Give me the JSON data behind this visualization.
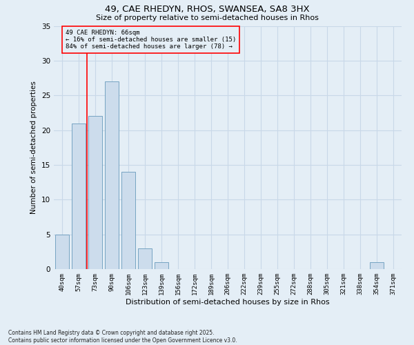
{
  "title1": "49, CAE RHEDYN, RHOS, SWANSEA, SA8 3HX",
  "title2": "Size of property relative to semi-detached houses in Rhos",
  "xlabel": "Distribution of semi-detached houses by size in Rhos",
  "ylabel": "Number of semi-detached properties",
  "categories": [
    "40sqm",
    "57sqm",
    "73sqm",
    "90sqm",
    "106sqm",
    "123sqm",
    "139sqm",
    "156sqm",
    "172sqm",
    "189sqm",
    "206sqm",
    "222sqm",
    "239sqm",
    "255sqm",
    "272sqm",
    "288sqm",
    "305sqm",
    "321sqm",
    "338sqm",
    "354sqm",
    "371sqm"
  ],
  "values": [
    5,
    21,
    22,
    27,
    14,
    3,
    1,
    0,
    0,
    0,
    0,
    0,
    0,
    0,
    0,
    0,
    0,
    0,
    0,
    1,
    0
  ],
  "bar_color": "#ccdcec",
  "bar_edge_color": "#6699bb",
  "grid_color": "#c8d8e8",
  "background_color": "#e4eef6",
  "vline_x": 1.5,
  "vline_color": "red",
  "annotation_text": "49 CAE RHEDYN: 66sqm\n← 16% of semi-detached houses are smaller (15)\n84% of semi-detached houses are larger (78) →",
  "annotation_box_edge": "red",
  "ylim": [
    0,
    35
  ],
  "yticks": [
    0,
    5,
    10,
    15,
    20,
    25,
    30,
    35
  ],
  "footer1": "Contains HM Land Registry data © Crown copyright and database right 2025.",
  "footer2": "Contains public sector information licensed under the Open Government Licence v3.0."
}
